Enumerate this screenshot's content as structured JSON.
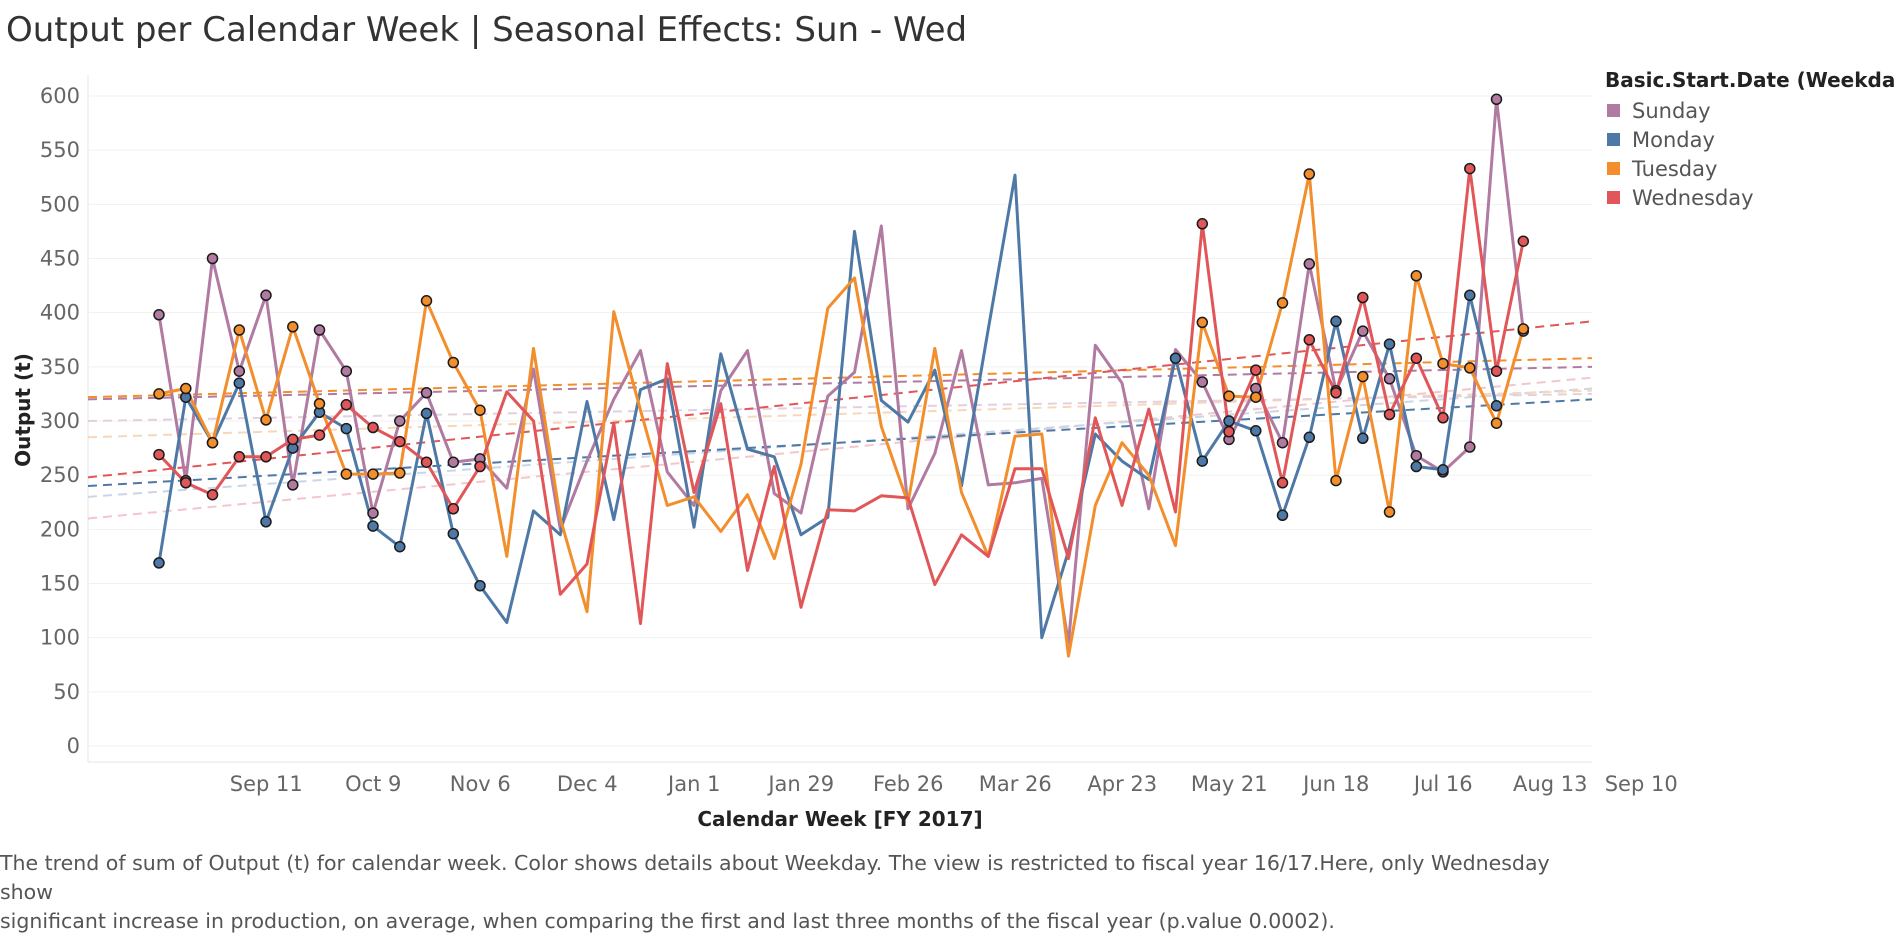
{
  "chart_data": {
    "type": "line",
    "title": "Output per Calendar Week | Seasonal Effects: Sun - Wed",
    "xlabel": "Calendar Week [FY 2017]",
    "ylabel": "Output (t)",
    "ylim": [
      0,
      620
    ],
    "yticks": [
      0,
      50,
      100,
      150,
      200,
      250,
      300,
      350,
      400,
      450,
      500,
      550,
      600
    ],
    "xticks": [
      {
        "label": "Sep 11",
        "week": 3
      },
      {
        "label": "Oct 9",
        "week": 7
      },
      {
        "label": "Nov 6",
        "week": 11
      },
      {
        "label": "Dec 4",
        "week": 15
      },
      {
        "label": "Jan 1",
        "week": 19
      },
      {
        "label": "Jan 29",
        "week": 23
      },
      {
        "label": "Feb 26",
        "week": 27
      },
      {
        "label": "Mar 26",
        "week": 31
      },
      {
        "label": "Apr 23",
        "week": 35
      },
      {
        "label": "May 21",
        "week": 39
      },
      {
        "label": "Jun 18",
        "week": 43
      },
      {
        "label": "Jul 16",
        "week": 47
      },
      {
        "label": "Aug 13",
        "week": 51
      },
      {
        "label": "Sep 10",
        "week": 54.4
      }
    ],
    "x_range": [
      0,
      55.4
    ],
    "legend_title": "Basic.Start.Date (Weekdays)",
    "legend_position": "right",
    "grid": "horizontal",
    "series": [
      {
        "name": "Sunday",
        "color": "#b07aa1",
        "values": [
          398,
          245,
          450,
          346,
          416,
          241,
          384,
          346,
          215,
          300,
          326,
          262,
          265,
          238,
          348,
          200,
          263,
          320,
          365,
          253,
          222,
          328,
          365,
          233,
          215,
          323,
          345,
          480,
          219,
          270,
          365,
          241,
          243,
          247,
          95,
          370,
          335,
          219,
          366,
          336,
          283,
          330,
          280,
          445,
          328,
          383,
          339,
          268,
          253,
          276,
          597,
          383
        ],
        "trend": [
          320,
          350
        ]
      },
      {
        "name": "Monday",
        "color": "#4e79a7",
        "values": [
          169,
          322,
          280,
          335,
          207,
          275,
          308,
          293,
          203,
          184,
          307,
          196,
          148,
          114,
          217,
          195,
          318,
          209,
          329,
          339,
          202,
          362,
          274,
          267,
          195,
          211,
          475,
          319,
          299,
          347,
          240,
          385,
          527,
          100,
          180,
          288,
          263,
          246,
          358,
          263,
          300,
          291,
          213,
          285,
          392,
          284,
          371,
          258,
          255,
          416,
          314
        ],
        "trend": [
          240,
          320
        ]
      },
      {
        "name": "Tuesday",
        "color": "#f28e2b",
        "values": [
          325,
          330,
          280,
          384,
          301,
          387,
          316,
          251,
          251,
          252,
          411,
          354,
          310,
          175,
          367,
          210,
          124,
          401,
          310,
          222,
          230,
          198,
          232,
          173,
          260,
          404,
          432,
          295,
          224,
          367,
          234,
          175,
          286,
          288,
          83,
          222,
          280,
          250,
          185,
          391,
          323,
          322,
          409,
          528,
          245,
          341,
          216,
          434,
          353,
          349,
          298,
          385
        ],
        "trend": [
          322,
          358
        ]
      },
      {
        "name": "Wednesday",
        "color": "#e15759",
        "values": [
          269,
          243,
          232,
          267,
          267,
          283,
          287,
          315,
          294,
          281,
          262,
          219,
          258,
          327,
          300,
          140,
          168,
          298,
          113,
          353,
          234,
          316,
          162,
          258,
          128,
          218,
          217,
          231,
          229,
          149,
          195,
          175,
          256,
          256,
          173,
          303,
          222,
          311,
          216,
          482,
          290,
          347,
          243,
          375,
          326,
          414,
          306,
          358,
          303,
          533,
          346,
          466
        ],
        "trend": [
          248,
          392
        ]
      }
    ],
    "faint_trends": [
      {
        "color": "#f3c6cb",
        "values": [
          210,
          340
        ]
      },
      {
        "color": "#c9d6e6",
        "values": [
          230,
          330
        ]
      },
      {
        "color": "#f7d7b8",
        "values": [
          285,
          328
        ]
      },
      {
        "color": "#e3d0df",
        "values": [
          300,
          325
        ]
      }
    ]
  },
  "caption": {
    "line1": "The trend of sum of Output (t) for calendar week.  Color shows details about Weekday. The view is restricted to fiscal year 16/17.Here, only Wednesday show",
    "line2": "significant increase in production, on average, when comparing the first and last three months of the fiscal year (p.value 0.0002)."
  }
}
